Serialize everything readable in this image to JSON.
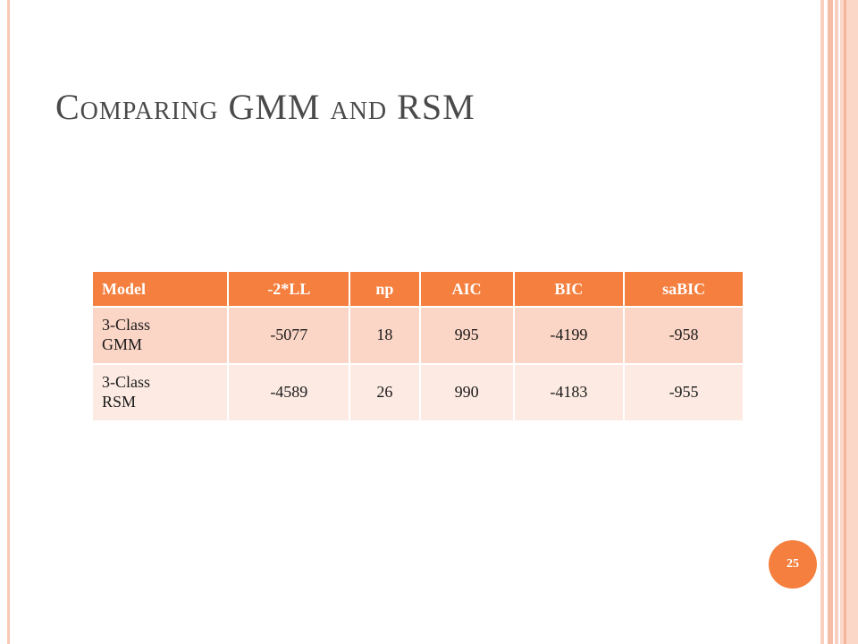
{
  "slide": {
    "title": "Comparing GMM and RSM",
    "page_number": "25"
  },
  "table": {
    "headers": [
      "Model",
      "-2*LL",
      "np",
      "AIC",
      "BIC",
      "saBIC"
    ],
    "rows": [
      {
        "model_line1": "3-Class",
        "model_line2": "GMM",
        "cells": [
          "-5077",
          "18",
          "995",
          "-4199",
          "-958"
        ]
      },
      {
        "model_line1": "3-Class",
        "model_line2": "RSM",
        "cells": [
          "-4589",
          "26",
          "990",
          "-4183",
          "-955"
        ]
      }
    ]
  },
  "colors": {
    "accent": "#f47f3e",
    "row_odd": "#fbd5c6",
    "row_even": "#fdebe3",
    "border_stripe": "#f7c8b6"
  }
}
